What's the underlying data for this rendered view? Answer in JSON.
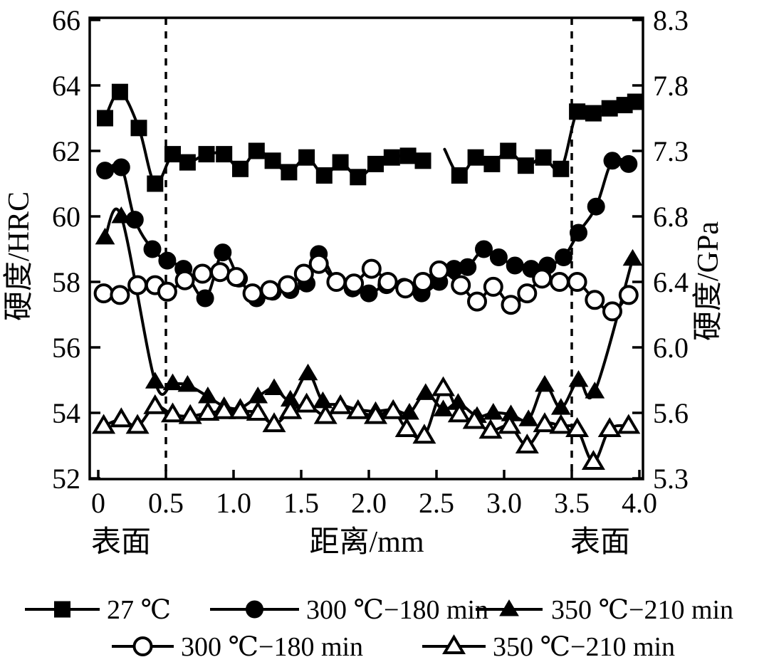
{
  "figure": {
    "background": "#ffffff",
    "ink_color": "#000000"
  },
  "chart_data": {
    "type": "line",
    "title": "",
    "xlabel": "距离/mm",
    "ylabel_left": "硬度/HRC",
    "ylabel_right": "硬度/GPa",
    "xlim": [
      -0.07,
      4.03
    ],
    "ylim": [
      52,
      66
    ],
    "grid": false,
    "x_tick_values": [
      0,
      0.5,
      1.0,
      1.5,
      2.0,
      2.5,
      3.0,
      3.5,
      4.0
    ],
    "x_tick_labels": [
      "0",
      "0.5",
      "1.0",
      "1.5",
      "2.0",
      "2.5",
      "3.0",
      "3.5",
      "4.0"
    ],
    "y_tick_values": [
      66,
      64,
      62,
      60,
      58,
      56,
      54,
      52
    ],
    "y_tick_labels_left": [
      "66",
      "64",
      "62",
      "60",
      "58",
      "56",
      "54",
      "52"
    ],
    "y_tick_labels_right": [
      "8.3",
      "7.8",
      "7.3",
      "6.8",
      "6.4",
      "6.0",
      "5.6",
      "5.3"
    ],
    "dashed_lines_x": [
      0.5,
      3.5
    ],
    "annotations": {
      "surface_left": "表面",
      "surface_right": "表面"
    },
    "series": [
      {
        "name": "27 ℃",
        "marker": "square-filled",
        "color": "#000000",
        "breaks": [
          20
        ],
        "points": [
          [
            0.05,
            63.0
          ],
          [
            0.16,
            63.8
          ],
          [
            0.3,
            62.7
          ],
          [
            0.42,
            61.0
          ],
          [
            0.55,
            61.9
          ],
          [
            0.66,
            61.65
          ],
          [
            0.8,
            61.9
          ],
          [
            0.93,
            61.9
          ],
          [
            1.05,
            61.45
          ],
          [
            1.17,
            62.0
          ],
          [
            1.29,
            61.7
          ],
          [
            1.41,
            61.35
          ],
          [
            1.54,
            61.8
          ],
          [
            1.67,
            61.25
          ],
          [
            1.79,
            61.65
          ],
          [
            1.92,
            61.2
          ],
          [
            2.05,
            61.6
          ],
          [
            2.17,
            61.8
          ],
          [
            2.29,
            61.85
          ],
          [
            2.4,
            61.7
          ],
          [
            2.56,
            62.05,
            0
          ],
          [
            2.67,
            61.25
          ],
          [
            2.79,
            61.8
          ],
          [
            2.91,
            61.6
          ],
          [
            3.03,
            62.0
          ],
          [
            3.16,
            61.55
          ],
          [
            3.29,
            61.8
          ],
          [
            3.42,
            61.45
          ],
          [
            3.54,
            63.2
          ],
          [
            3.66,
            63.15
          ],
          [
            3.78,
            63.3
          ],
          [
            3.89,
            63.4
          ],
          [
            3.97,
            63.5
          ]
        ]
      },
      {
        "name": "300 ℃−180 min",
        "marker": "circle-filled",
        "color": "#000000",
        "breaks": [],
        "points": [
          [
            0.05,
            61.4
          ],
          [
            0.17,
            61.5
          ],
          [
            0.27,
            59.9
          ],
          [
            0.4,
            59.0
          ],
          [
            0.51,
            58.65
          ],
          [
            0.63,
            58.4
          ],
          [
            0.79,
            57.5
          ],
          [
            0.92,
            58.9
          ],
          [
            1.04,
            58.1
          ],
          [
            1.17,
            57.5
          ],
          [
            1.29,
            57.7
          ],
          [
            1.42,
            57.75
          ],
          [
            1.54,
            57.95
          ],
          [
            1.63,
            58.85
          ],
          [
            1.76,
            58.0
          ],
          [
            1.88,
            57.8
          ],
          [
            2.0,
            57.65
          ],
          [
            2.13,
            57.9
          ],
          [
            2.26,
            57.85
          ],
          [
            2.39,
            57.65
          ],
          [
            2.52,
            58.0
          ],
          [
            2.63,
            58.4
          ],
          [
            2.73,
            58.45
          ],
          [
            2.85,
            59.0
          ],
          [
            2.96,
            58.75
          ],
          [
            3.08,
            58.5
          ],
          [
            3.2,
            58.4
          ],
          [
            3.32,
            58.5
          ],
          [
            3.44,
            58.75
          ],
          [
            3.55,
            59.5
          ],
          [
            3.68,
            60.3
          ],
          [
            3.8,
            61.7
          ],
          [
            3.92,
            61.6
          ]
        ]
      },
      {
        "name": "300 ℃−180 min",
        "marker": "circle-open",
        "color": "#000000",
        "breaks": [],
        "points": [
          [
            0.04,
            57.65
          ],
          [
            0.16,
            57.6
          ],
          [
            0.29,
            57.9
          ],
          [
            0.42,
            57.9
          ],
          [
            0.51,
            57.7
          ],
          [
            0.64,
            58.05
          ],
          [
            0.77,
            58.25
          ],
          [
            0.9,
            58.3
          ],
          [
            1.02,
            58.15
          ],
          [
            1.14,
            57.65
          ],
          [
            1.27,
            57.75
          ],
          [
            1.4,
            57.9
          ],
          [
            1.52,
            58.25
          ],
          [
            1.63,
            58.55
          ],
          [
            1.76,
            58.0
          ],
          [
            1.89,
            57.95
          ],
          [
            2.02,
            58.4
          ],
          [
            2.14,
            58.0
          ],
          [
            2.27,
            57.8
          ],
          [
            2.4,
            58.0
          ],
          [
            2.52,
            58.35
          ],
          [
            2.68,
            57.9
          ],
          [
            2.8,
            57.4
          ],
          [
            2.92,
            57.85
          ],
          [
            3.05,
            57.3
          ],
          [
            3.17,
            57.65
          ],
          [
            3.28,
            58.1
          ],
          [
            3.41,
            58.0
          ],
          [
            3.54,
            58.0
          ],
          [
            3.67,
            57.45
          ],
          [
            3.8,
            57.1
          ],
          [
            3.92,
            57.6
          ]
        ]
      },
      {
        "name": "350 ℃−210 min",
        "marker": "triangle-filled",
        "color": "#000000",
        "breaks": [],
        "points": [
          [
            0.05,
            59.35
          ],
          [
            0.17,
            60.0
          ],
          [
            0.42,
            54.95
          ],
          [
            0.55,
            54.9
          ],
          [
            0.66,
            54.85
          ],
          [
            0.81,
            54.5
          ],
          [
            0.93,
            54.2
          ],
          [
            1.05,
            54.15
          ],
          [
            1.18,
            54.5
          ],
          [
            1.3,
            54.75
          ],
          [
            1.42,
            54.4
          ],
          [
            1.55,
            55.2
          ],
          [
            1.66,
            54.35
          ],
          [
            1.79,
            54.25
          ],
          [
            1.92,
            54.1
          ],
          [
            2.05,
            54.05
          ],
          [
            2.18,
            54.1
          ],
          [
            2.3,
            54.0
          ],
          [
            2.42,
            54.6
          ],
          [
            2.55,
            54.1
          ],
          [
            2.66,
            54.3
          ],
          [
            2.8,
            53.9
          ],
          [
            2.92,
            54.0
          ],
          [
            3.05,
            53.95
          ],
          [
            3.18,
            53.8
          ],
          [
            3.3,
            54.85
          ],
          [
            3.42,
            54.15
          ],
          [
            3.55,
            55.0
          ],
          [
            3.67,
            54.65
          ],
          [
            3.95,
            58.7
          ]
        ]
      },
      {
        "name": "350 ℃−210 min",
        "marker": "triangle-open",
        "color": "#000000",
        "breaks": [],
        "points": [
          [
            0.04,
            53.6
          ],
          [
            0.17,
            53.8
          ],
          [
            0.29,
            53.6
          ],
          [
            0.42,
            54.2
          ],
          [
            0.55,
            53.95
          ],
          [
            0.68,
            53.9
          ],
          [
            0.81,
            54.0
          ],
          [
            0.93,
            54.05
          ],
          [
            1.05,
            54.05
          ],
          [
            1.18,
            54.0
          ],
          [
            1.3,
            53.65
          ],
          [
            1.42,
            54.05
          ],
          [
            1.54,
            54.25
          ],
          [
            1.68,
            53.9
          ],
          [
            1.79,
            54.2
          ],
          [
            1.92,
            54.05
          ],
          [
            2.05,
            53.9
          ],
          [
            2.18,
            54.05
          ],
          [
            2.28,
            53.5
          ],
          [
            2.41,
            53.3
          ],
          [
            2.55,
            54.75
          ],
          [
            2.67,
            53.95
          ],
          [
            2.78,
            53.75
          ],
          [
            2.9,
            53.45
          ],
          [
            3.04,
            53.6
          ],
          [
            3.17,
            53.0
          ],
          [
            3.3,
            53.65
          ],
          [
            3.42,
            53.6
          ],
          [
            3.54,
            53.5
          ],
          [
            3.66,
            52.5
          ],
          [
            3.78,
            53.5
          ],
          [
            3.92,
            53.6
          ]
        ]
      }
    ],
    "legend": {
      "position": "bottom",
      "rows": [
        [
          {
            "marker": "square-filled",
            "label": "27 ℃"
          },
          {
            "marker": "circle-filled",
            "label": "300 ℃−180 min"
          },
          {
            "marker": "triangle-filled",
            "label": "350 ℃−210 min"
          }
        ],
        [
          {
            "marker": "circle-open",
            "label": "300 ℃−180 min"
          },
          {
            "marker": "triangle-open",
            "label": "350 ℃−210 min"
          }
        ]
      ]
    }
  }
}
